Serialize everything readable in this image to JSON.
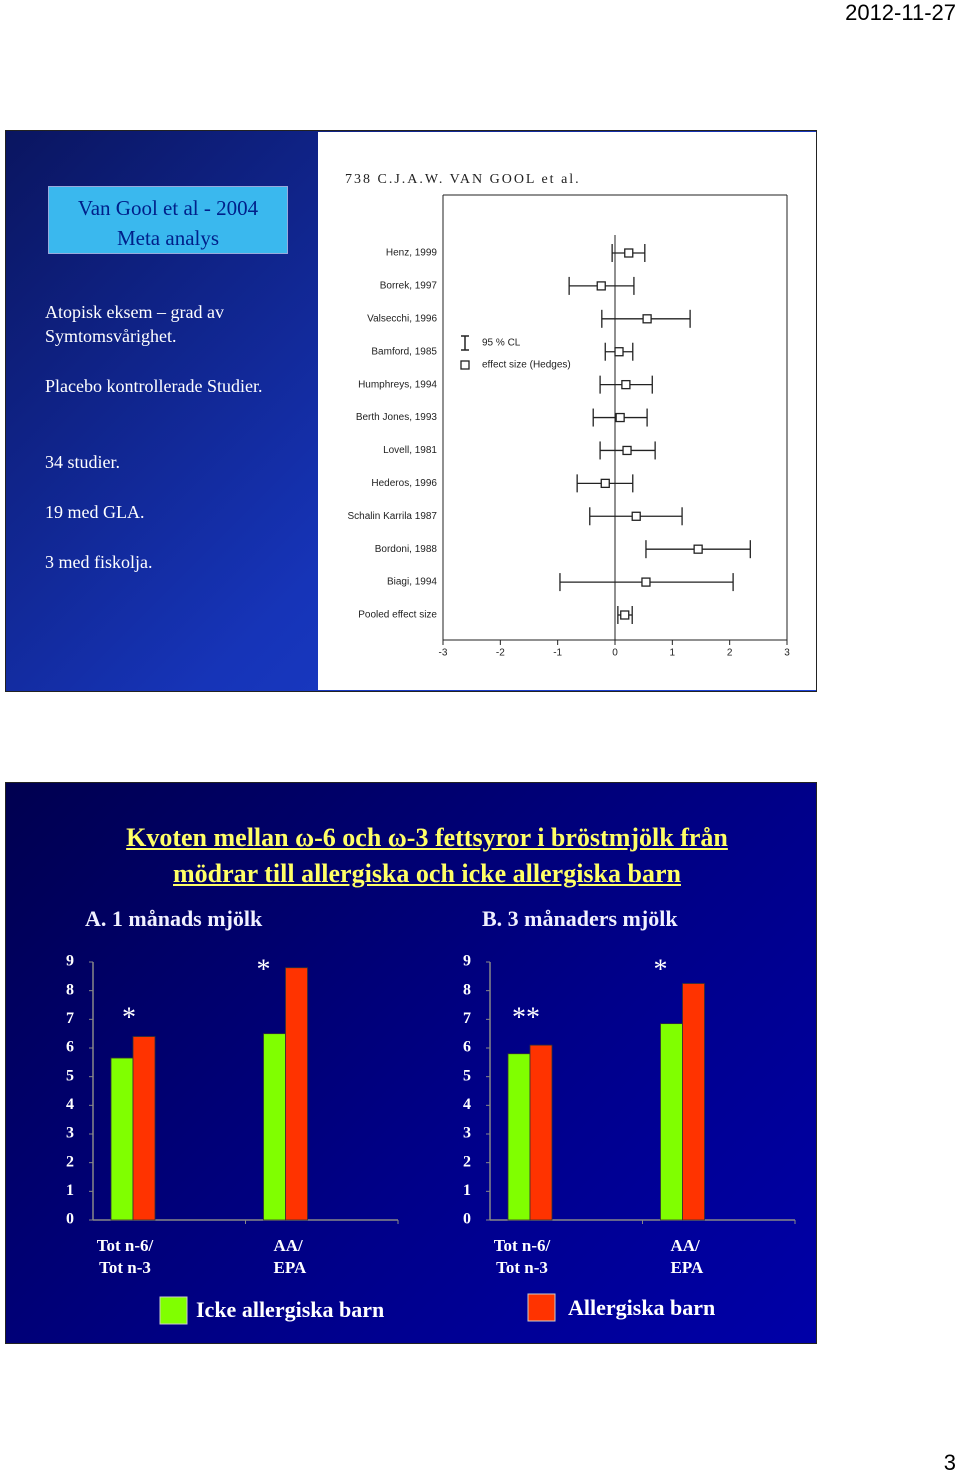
{
  "header": {
    "date": "2012-11-27"
  },
  "footer": {
    "page": "3"
  },
  "slide1": {
    "title": [
      "Van Gool et al  - 2004",
      "Meta analys"
    ],
    "bullets": [
      "Atopisk eksem – grad av Symtomsvårighet.",
      "Placebo kontrollerade Studier.",
      "34 studier.",
      "19 med GLA.",
      "3 med fiskolja."
    ],
    "figure_header": "738   C.J.A.W. VAN GOOL et al.",
    "legend_ci": "95 % CL",
    "legend_effect": "effect size (Hedges)"
  },
  "slide2": {
    "title": [
      "Kvoten mellan ω-6 och ω-3 fettsyror i bröstmjölk från",
      "mödrar till allergiska och icke allergiska barn"
    ],
    "legend": [
      {
        "name": "Icke allergiska barn",
        "color": "#80ff00"
      },
      {
        "name": "Allergiska barn",
        "color": "#ff3300"
      }
    ]
  },
  "chart_data": [
    {
      "type": "forest",
      "categories": [
        "Henz, 1999",
        "Borrek, 1997",
        "Valsecchi, 1996",
        "Bamford, 1985",
        "Humphreys, 1994",
        "Berth Jones, 1993",
        "Lovell, 1981",
        "Hederos, 1996",
        "Schalin Karrila 1987",
        "Bordoni, 1988",
        "Biagi, 1994",
        "Pooled effect size"
      ],
      "values": [
        0.24,
        -0.24,
        0.56,
        0.07,
        0.19,
        0.09,
        0.21,
        -0.17,
        0.37,
        1.45,
        0.54,
        0.17
      ],
      "ci_low": [
        -0.05,
        -0.8,
        -0.23,
        -0.17,
        -0.26,
        -0.38,
        -0.26,
        -0.66,
        -0.44,
        0.54,
        -0.96,
        0.05
      ],
      "ci_high": [
        0.52,
        0.33,
        1.31,
        0.31,
        0.65,
        0.56,
        0.7,
        0.31,
        1.17,
        2.36,
        2.06,
        0.3
      ],
      "xlim": [
        -3,
        3
      ],
      "xticks": [
        -3,
        -2,
        -1,
        0,
        1,
        2,
        3
      ]
    },
    {
      "type": "bar",
      "subtitle": "A. 1 månads mjölk",
      "categories": [
        [
          "Tot n-6/",
          "Tot n-3"
        ],
        [
          "AA/",
          "EPA"
        ]
      ],
      "series": [
        {
          "values": [
            5.65,
            6.5
          ]
        },
        {
          "values": [
            6.4,
            8.8
          ]
        }
      ],
      "annotations": [
        "*",
        "*"
      ],
      "ylim": [
        0,
        9
      ],
      "yticks": [
        0,
        1,
        2,
        3,
        4,
        5,
        6,
        7,
        8,
        9
      ]
    },
    {
      "type": "bar",
      "subtitle": "B. 3 månaders mjölk",
      "categories": [
        [
          "Tot n-6/",
          "Tot n-3"
        ],
        [
          "AA/",
          "EPA"
        ]
      ],
      "series": [
        {
          "values": [
            5.8,
            6.85
          ]
        },
        {
          "values": [
            6.1,
            8.25
          ]
        }
      ],
      "annotations": [
        "**",
        "*"
      ],
      "ylim": [
        0,
        9
      ],
      "yticks": [
        0,
        1,
        2,
        3,
        4,
        5,
        6,
        7,
        8,
        9
      ]
    }
  ]
}
